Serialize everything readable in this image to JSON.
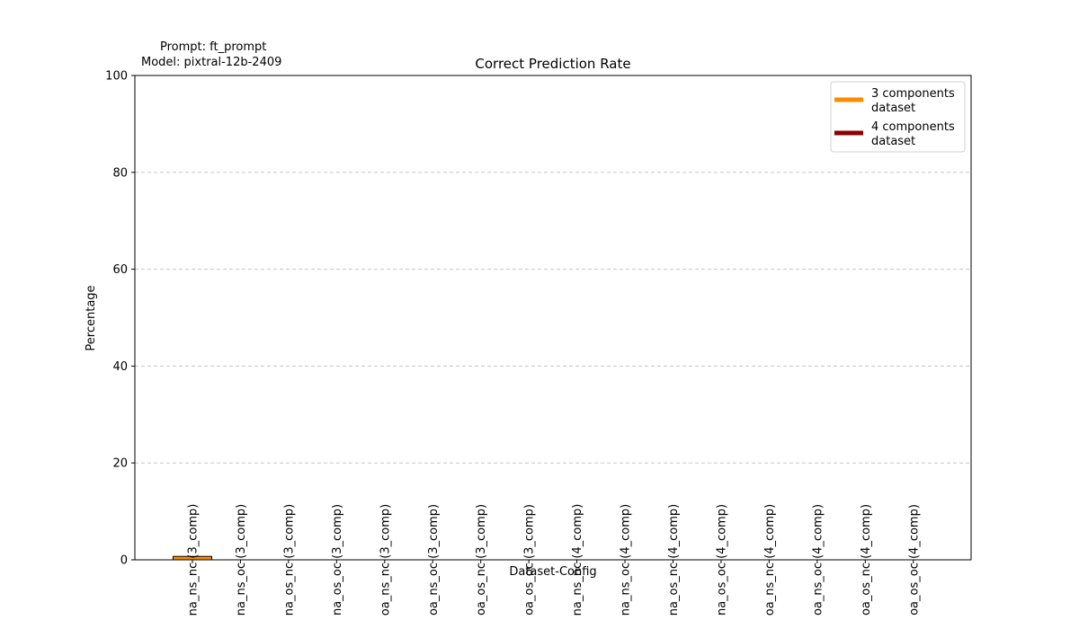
{
  "meta": {
    "prompt_line": "Prompt: ft_prompt",
    "model_line": "Model: pixtral-12b-2409"
  },
  "chart_data": {
    "type": "bar",
    "title": "Correct Prediction Rate",
    "xlabel": "Dataset-Config",
    "ylabel": "Percentage",
    "ylim": [
      0,
      100
    ],
    "yticks": [
      0,
      20,
      40,
      60,
      80,
      100
    ],
    "grid": "y-dashed",
    "legend_position": "top-right",
    "categories": [
      "na_ns_nc (3_comp)",
      "na_ns_oc (3_comp)",
      "na_os_nc (3_comp)",
      "na_os_oc (3_comp)",
      "oa_ns_nc (3_comp)",
      "oa_ns_oc (3_comp)",
      "oa_os_nc (3_comp)",
      "oa_os_oc (3_comp)",
      "na_ns_nc (4_comp)",
      "na_ns_oc (4_comp)",
      "na_os_nc (4_comp)",
      "na_os_oc (4_comp)",
      "oa_ns_nc (4_comp)",
      "oa_ns_oc (4_comp)",
      "oa_os_nc (4_comp)",
      "oa_os_oc (4_comp)"
    ],
    "series": [
      {
        "name": "3 components dataset",
        "legend_lines": [
          "3 components",
          "dataset"
        ],
        "color": "#ff8c00",
        "values": [
          0.7,
          0,
          0,
          0,
          0,
          0,
          0,
          0,
          null,
          null,
          null,
          null,
          null,
          null,
          null,
          null
        ]
      },
      {
        "name": "4 components dataset",
        "legend_lines": [
          "4 components",
          "dataset"
        ],
        "color": "#8b0000",
        "values": [
          null,
          null,
          null,
          null,
          null,
          null,
          null,
          null,
          0,
          0,
          0,
          0,
          0,
          0,
          0,
          0
        ]
      }
    ]
  }
}
